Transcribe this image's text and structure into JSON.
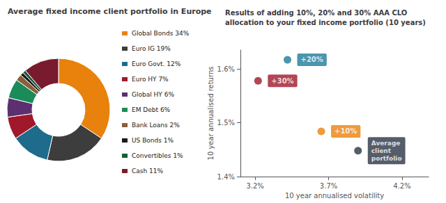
{
  "chart_data": [
    {
      "type": "pie",
      "title": "Average fixed income client portfolio in Europe",
      "categories": [
        "Global Bonds 34%",
        "Euro IG 19%",
        "Euro Govt. 12%",
        "Euro HY 7%",
        "Global HY 6%",
        "EM Debt 6%",
        "Bank Loans 2%",
        "US Bonds 1%",
        "Convertibles 1%",
        "Cash 11%"
      ],
      "values": [
        34,
        19,
        12,
        7,
        6,
        6,
        2,
        1,
        1,
        11
      ],
      "colors": [
        "#E8820C",
        "#3D3D3D",
        "#1E6B8C",
        "#A0182A",
        "#5C3070",
        "#1A8C5A",
        "#8B5E3C",
        "#1A1A1A",
        "#1A5C3A",
        "#7A1A2E"
      ],
      "legend": "right"
    },
    {
      "type": "scatter",
      "title": "Results of adding 10%, 20% and 30% AAA CLO\nallocation to your fixed income portfolio (10 years)",
      "x": [
        3.22,
        3.42,
        3.65,
        3.9
      ],
      "values": [
        1.578,
        1.617,
        1.484,
        1.448
      ],
      "colors": [
        "#A0182A",
        "#1E7A9A",
        "#E8820C",
        "#2C3545"
      ],
      "annotations": [
        {
          "text": "+30%",
          "x": 3.22,
          "y": 1.578,
          "color": "#A0182A"
        },
        {
          "text": "+20%",
          "x": 3.42,
          "y": 1.617,
          "color": "#1E7A9A"
        },
        {
          "text": "+10%",
          "x": 3.65,
          "y": 1.484,
          "color": "#E8820C"
        },
        {
          "text": "Average\nclient\nportfolio",
          "x": 3.9,
          "y": 1.448,
          "color": "#2C3545"
        }
      ],
      "xlabel": "10 year annualised volatility",
      "ylabel": "10 year annualised returns",
      "xlim": [
        3.1,
        4.38
      ],
      "ylim": [
        1.4,
        1.635
      ],
      "xticks": [
        {
          "value": 3.2,
          "label": "3.2%"
        },
        {
          "value": 3.7,
          "label": "3.7%"
        },
        {
          "value": 4.2,
          "label": "4.2%"
        }
      ],
      "yticks": [
        {
          "value": 1.4,
          "label": "1.4%"
        },
        {
          "value": 1.5,
          "label": "1.5%"
        },
        {
          "value": 1.6,
          "label": "1.6%"
        }
      ],
      "grid": false
    }
  ]
}
